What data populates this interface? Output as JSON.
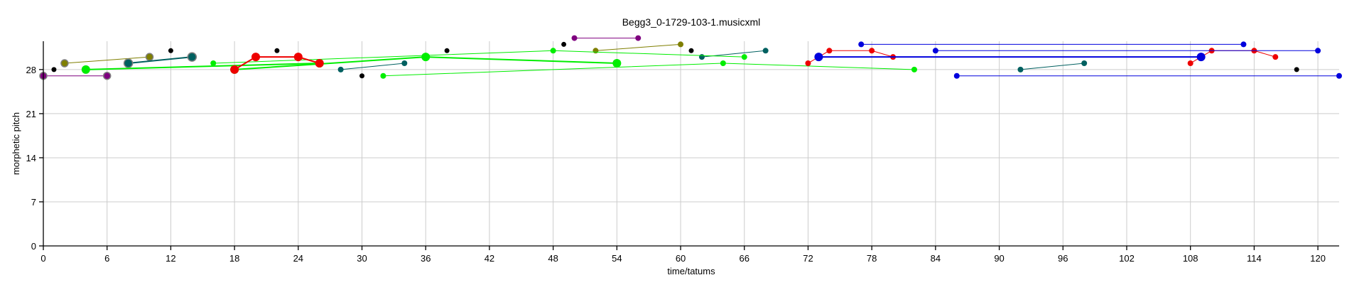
{
  "chart_data": {
    "type": "scatter",
    "title": "Begg3_0-1729-103-1.musicxml",
    "xlabel": "time/tatums",
    "ylabel": "morphetic pitch",
    "xlim": [
      0,
      122
    ],
    "ylim": [
      0,
      32.5
    ],
    "xticks": [
      "0",
      "6",
      "12",
      "18",
      "24",
      "30",
      "36",
      "42",
      "48",
      "54",
      "60",
      "66",
      "72",
      "78",
      "84",
      "90",
      "96",
      "102",
      "108",
      "114",
      "120"
    ],
    "yticks": [
      "0",
      "7",
      "14",
      "21",
      "28"
    ],
    "grid": true,
    "series": [
      {
        "color": "#7f007f",
        "edge": "#7f7f7f",
        "size": 5,
        "points": [
          [
            0,
            27
          ],
          [
            6,
            27
          ]
        ]
      },
      {
        "color": "#7f007f",
        "size": 4,
        "points": [
          [
            50,
            33
          ],
          [
            56,
            33
          ]
        ]
      },
      {
        "color": "#7f7f00",
        "edge": "#7f7f7f",
        "size": 5,
        "points": [
          [
            2,
            29
          ],
          [
            10,
            30
          ]
        ]
      },
      {
        "color": "#7f7f00",
        "size": 4,
        "points": [
          [
            52,
            31
          ],
          [
            60,
            32
          ]
        ]
      },
      {
        "color": "#006060",
        "edge": "#7f7f7f",
        "size": 6,
        "points": [
          [
            8,
            29
          ],
          [
            14,
            30
          ]
        ]
      },
      {
        "color": "#006060",
        "size": 4,
        "points": [
          [
            28,
            28
          ],
          [
            34,
            29
          ]
        ]
      },
      {
        "color": "#006060",
        "size": 4,
        "points": [
          [
            62,
            30
          ],
          [
            68,
            31
          ]
        ]
      },
      {
        "color": "#006060",
        "size": 4,
        "points": [
          [
            92,
            28
          ],
          [
            98,
            29
          ]
        ]
      },
      {
        "color": "#00ee00",
        "size": 6,
        "points": [
          [
            4,
            28
          ],
          [
            26,
            29
          ]
        ]
      },
      {
        "color": "#00ee00",
        "size": 6,
        "points": [
          [
            18,
            28
          ],
          [
            36,
            30
          ],
          [
            54,
            29
          ]
        ]
      },
      {
        "color": "#00ee00",
        "size": 4,
        "points": [
          [
            16,
            29
          ],
          [
            48,
            31
          ],
          [
            66,
            30
          ]
        ]
      },
      {
        "color": "#00ee00",
        "size": 4,
        "points": [
          [
            32,
            27
          ],
          [
            64,
            29
          ],
          [
            82,
            28
          ]
        ]
      },
      {
        "color": "#ee0000",
        "size": 6,
        "points": [
          [
            18,
            28
          ],
          [
            20,
            30
          ],
          [
            24,
            30
          ],
          [
            26,
            29
          ]
        ]
      },
      {
        "color": "#ee0000",
        "size": 4,
        "points": [
          [
            72,
            29
          ],
          [
            74,
            31
          ],
          [
            78,
            31
          ],
          [
            80,
            30
          ]
        ]
      },
      {
        "color": "#ee0000",
        "size": 4,
        "points": [
          [
            108,
            29
          ],
          [
            110,
            31
          ],
          [
            114,
            31
          ],
          [
            116,
            30
          ]
        ]
      },
      {
        "color": "#0000dd",
        "size": 6,
        "points": [
          [
            73,
            30
          ],
          [
            109,
            30
          ]
        ]
      },
      {
        "color": "#0000dd",
        "size": 4,
        "points": [
          [
            77,
            32
          ],
          [
            113,
            32
          ]
        ]
      },
      {
        "color": "#0000dd",
        "size": 4,
        "points": [
          [
            84,
            31
          ],
          [
            120,
            31
          ]
        ]
      },
      {
        "color": "#0000dd",
        "size": 4,
        "points": [
          [
            86,
            27
          ],
          [
            122,
            27
          ]
        ]
      },
      {
        "color": "#000000",
        "size": 3.5,
        "line": false,
        "points": [
          [
            1,
            28
          ],
          [
            12,
            31
          ],
          [
            22,
            31
          ],
          [
            30,
            27
          ],
          [
            38,
            31
          ],
          [
            49,
            32
          ],
          [
            61,
            31
          ],
          [
            118,
            28
          ]
        ]
      }
    ]
  }
}
